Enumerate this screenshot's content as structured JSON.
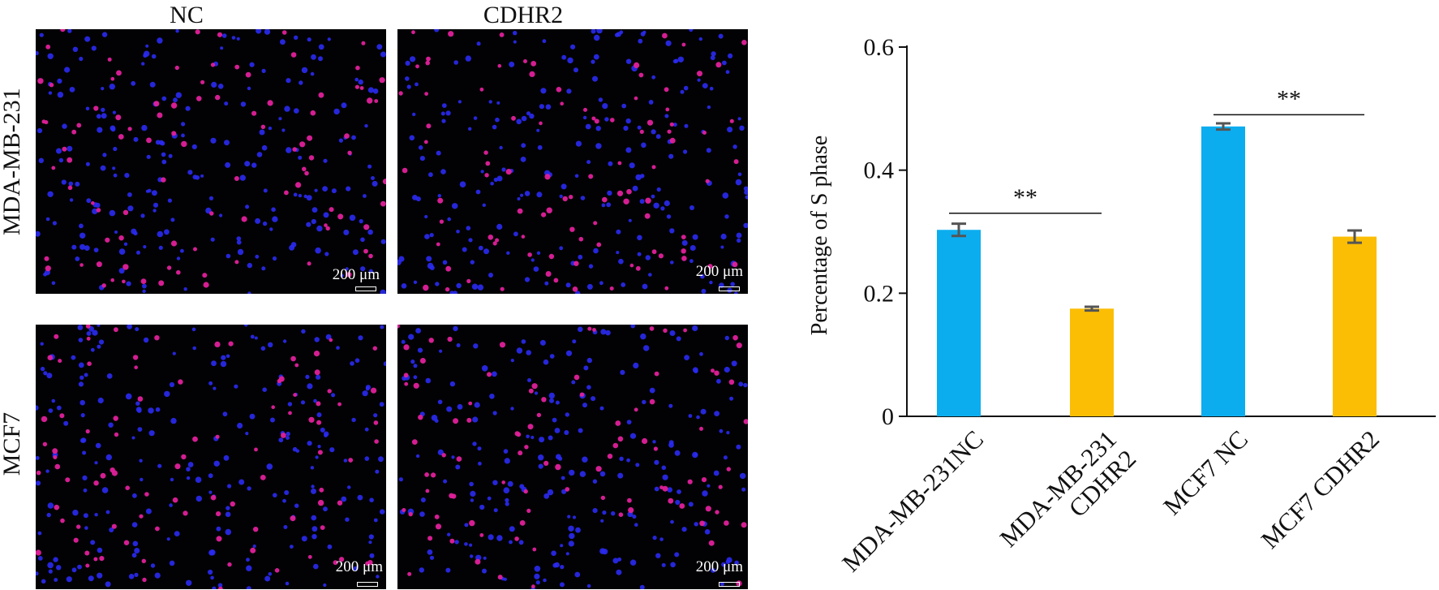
{
  "panel_titles": {
    "col1": "NC",
    "col2": "CDHR2"
  },
  "row_labels": {
    "row1": "MDA-MB-231",
    "row2": "MCF7"
  },
  "scale_bar_label": "200 μm",
  "colors": {
    "nc_bar": "#0BADEF",
    "cdhr2_bar": "#FBBE05",
    "nuclei": "#2A2AF2",
    "edu": "#E0209A",
    "background": "#020205"
  },
  "chart_data": {
    "type": "bar",
    "ylabel": "Percentage of S phase",
    "xlabel": "",
    "ylim": [
      0,
      0.6
    ],
    "yticks": [
      {
        "value": 0,
        "label": "0"
      },
      {
        "value": 0.2,
        "label": "0.2"
      },
      {
        "value": 0.4,
        "label": "0.4"
      },
      {
        "value": 0.6,
        "label": "0.6"
      }
    ],
    "categories": [
      "MDA-MB-231NC",
      "MDA-MB-231 CDHR2",
      "MCF7 NC",
      "MCF7 CDHR2"
    ],
    "category_lines": [
      [
        "MDA-MB-231NC"
      ],
      [
        "MDA-MB-231",
        "CDHR2"
      ],
      [
        "MCF7 NC"
      ],
      [
        "MCF7 CDHR2"
      ]
    ],
    "values": [
      0.303,
      0.175,
      0.471,
      0.292
    ],
    "errors": [
      0.01,
      0.003,
      0.005,
      0.01
    ],
    "bar_colors": [
      "#0BADEF",
      "#FBBE05",
      "#0BADEF",
      "#FBBE05"
    ],
    "significance": [
      {
        "from": 0,
        "to": 1,
        "y": 0.33,
        "label": "**"
      },
      {
        "from": 2,
        "to": 3,
        "y": 0.49,
        "label": "**"
      }
    ],
    "grid": false,
    "legend": "none"
  }
}
